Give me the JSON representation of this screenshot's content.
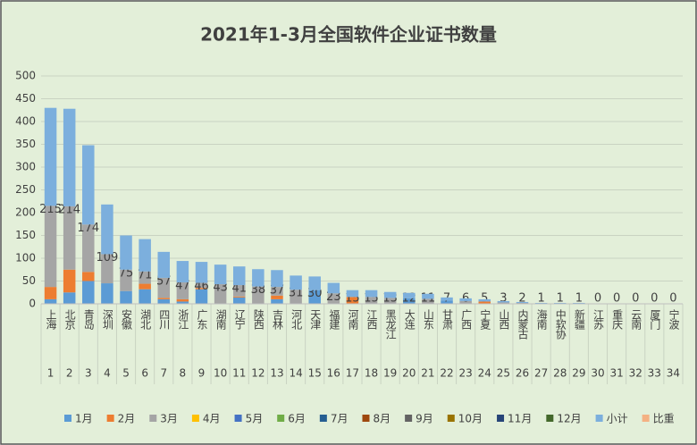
{
  "chart_data": {
    "type": "stacked_bar",
    "title": "2021年1-3月全国软件企业证书数量",
    "categories": [
      "上海",
      "北京",
      "青岛",
      "深圳",
      "安徽",
      "湖北",
      "四川",
      "浙江",
      "广东",
      "湖南",
      "辽宁",
      "陕西",
      "吉林",
      "河北",
      "天津",
      "福建",
      "河南",
      "江西",
      "黑龙江",
      "大连",
      "山东",
      "甘肃",
      "广西",
      "宁夏",
      "山西",
      "内蒙古",
      "海南",
      "中软协",
      "新疆",
      "江苏",
      "重庆",
      "云南",
      "厦门",
      "宁波"
    ],
    "category_numbers": [
      1,
      2,
      3,
      4,
      5,
      6,
      7,
      8,
      9,
      10,
      11,
      12,
      13,
      14,
      15,
      16,
      17,
      18,
      19,
      20,
      21,
      22,
      23,
      24,
      25,
      26,
      27,
      28,
      29,
      30,
      31,
      32,
      33,
      34
    ],
    "series": [
      {
        "name": "1月",
        "color": "#5b9bd5",
        "values": [
          10,
          25,
          50,
          45,
          28,
          32,
          10,
          5,
          32,
          0,
          14,
          0,
          10,
          0,
          30,
          0,
          0,
          0,
          0,
          12,
          0,
          7,
          0,
          0,
          0,
          0,
          0,
          0,
          0,
          0,
          0,
          0,
          0,
          0
        ]
      },
      {
        "name": "2月",
        "color": "#ed7d31",
        "values": [
          27,
          50,
          20,
          0,
          0,
          12,
          3,
          5,
          3,
          0,
          2,
          0,
          8,
          0,
          0,
          0,
          15,
          0,
          0,
          0,
          0,
          0,
          0,
          5,
          0,
          0,
          0,
          0,
          0,
          0,
          0,
          0,
          0,
          0
        ]
      },
      {
        "name": "3月",
        "color": "#a5a5a5",
        "values": [
          178,
          139,
          104,
          64,
          47,
          27,
          44,
          37,
          11,
          43,
          25,
          38,
          19,
          31,
          0,
          23,
          0,
          15,
          13,
          0,
          11,
          0,
          6,
          0,
          3,
          2,
          1,
          1,
          1,
          0,
          0,
          0,
          0,
          0
        ]
      },
      {
        "name": "4月",
        "color": "#ffc000",
        "values": [
          0,
          0,
          0,
          0,
          0,
          0,
          0,
          0,
          0,
          0,
          0,
          0,
          0,
          0,
          0,
          0,
          0,
          0,
          0,
          0,
          0,
          0,
          0,
          0,
          0,
          0,
          0,
          0,
          0,
          0,
          0,
          0,
          0,
          0
        ]
      },
      {
        "name": "5月",
        "color": "#4472c4",
        "values": [
          0,
          0,
          0,
          0,
          0,
          0,
          0,
          0,
          0,
          0,
          0,
          0,
          0,
          0,
          0,
          0,
          0,
          0,
          0,
          0,
          0,
          0,
          0,
          0,
          0,
          0,
          0,
          0,
          0,
          0,
          0,
          0,
          0,
          0
        ]
      },
      {
        "name": "6月",
        "color": "#70ad47",
        "values": [
          0,
          0,
          0,
          0,
          0,
          0,
          0,
          0,
          0,
          0,
          0,
          0,
          0,
          0,
          0,
          0,
          0,
          0,
          0,
          0,
          0,
          0,
          0,
          0,
          0,
          0,
          0,
          0,
          0,
          0,
          0,
          0,
          0,
          0
        ]
      },
      {
        "name": "7月",
        "color": "#255e91",
        "values": [
          0,
          0,
          0,
          0,
          0,
          0,
          0,
          0,
          0,
          0,
          0,
          0,
          0,
          0,
          0,
          0,
          0,
          0,
          0,
          0,
          0,
          0,
          0,
          0,
          0,
          0,
          0,
          0,
          0,
          0,
          0,
          0,
          0,
          0
        ]
      },
      {
        "name": "8月",
        "color": "#9e480e",
        "values": [
          0,
          0,
          0,
          0,
          0,
          0,
          0,
          0,
          0,
          0,
          0,
          0,
          0,
          0,
          0,
          0,
          0,
          0,
          0,
          0,
          0,
          0,
          0,
          0,
          0,
          0,
          0,
          0,
          0,
          0,
          0,
          0,
          0,
          0
        ]
      },
      {
        "name": "9月",
        "color": "#636363",
        "values": [
          0,
          0,
          0,
          0,
          0,
          0,
          0,
          0,
          0,
          0,
          0,
          0,
          0,
          0,
          0,
          0,
          0,
          0,
          0,
          0,
          0,
          0,
          0,
          0,
          0,
          0,
          0,
          0,
          0,
          0,
          0,
          0,
          0,
          0
        ]
      },
      {
        "name": "10月",
        "color": "#997300",
        "values": [
          0,
          0,
          0,
          0,
          0,
          0,
          0,
          0,
          0,
          0,
          0,
          0,
          0,
          0,
          0,
          0,
          0,
          0,
          0,
          0,
          0,
          0,
          0,
          0,
          0,
          0,
          0,
          0,
          0,
          0,
          0,
          0,
          0,
          0
        ]
      },
      {
        "name": "11月",
        "color": "#264478",
        "values": [
          0,
          0,
          0,
          0,
          0,
          0,
          0,
          0,
          0,
          0,
          0,
          0,
          0,
          0,
          0,
          0,
          0,
          0,
          0,
          0,
          0,
          0,
          0,
          0,
          0,
          0,
          0,
          0,
          0,
          0,
          0,
          0,
          0,
          0
        ]
      },
      {
        "name": "12月",
        "color": "#43682b",
        "values": [
          0,
          0,
          0,
          0,
          0,
          0,
          0,
          0,
          0,
          0,
          0,
          0,
          0,
          0,
          0,
          0,
          0,
          0,
          0,
          0,
          0,
          0,
          0,
          0,
          0,
          0,
          0,
          0,
          0,
          0,
          0,
          0,
          0,
          0
        ]
      },
      {
        "name": "小计",
        "color": "#7cafdd",
        "values": [
          215,
          214,
          174,
          109,
          75,
          71,
          57,
          47,
          46,
          43,
          41,
          38,
          37,
          31,
          30,
          23,
          15,
          15,
          13,
          12,
          11,
          7,
          6,
          5,
          3,
          2,
          1,
          1,
          1,
          0,
          0,
          0,
          0,
          0
        ],
        "data_labels": true
      },
      {
        "name": "比重",
        "color": "#f4b183",
        "values": [
          null,
          null,
          null,
          null,
          null,
          null,
          null,
          null,
          null,
          null,
          null,
          null,
          null,
          null,
          null,
          null,
          null,
          null,
          null,
          null,
          null,
          null,
          null,
          null,
          null,
          null,
          null,
          null,
          null,
          null,
          null,
          null,
          null,
          null
        ]
      }
    ],
    "ylim": [
      0,
      500
    ],
    "yticks": [
      0,
      50,
      100,
      150,
      200,
      250,
      300,
      350,
      400,
      450,
      500
    ],
    "grid": true,
    "legend": "bottom"
  }
}
